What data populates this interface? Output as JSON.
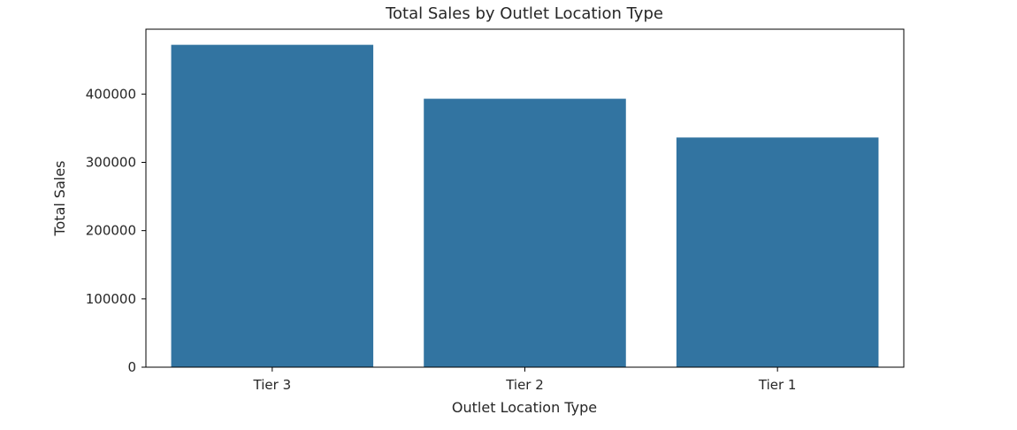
{
  "chart_data": {
    "type": "bar",
    "title": "Total Sales by Outlet Location Type",
    "xlabel": "Outlet Location Type",
    "ylabel": "Total Sales",
    "categories": [
      "Tier 3",
      "Tier 2",
      "Tier 1"
    ],
    "values": [
      472133,
      393150,
      336398
    ],
    "ylim": [
      0,
      495000
    ],
    "y_ticks": [
      0,
      100000,
      200000,
      300000,
      400000
    ],
    "y_tick_labels": [
      "0",
      "100000",
      "200000",
      "300000",
      "400000"
    ],
    "grid": false,
    "legend": "none",
    "colors": {
      "bar": "#3274a1",
      "axis": "#000000",
      "text": "#262626",
      "background": "#ffffff"
    }
  }
}
